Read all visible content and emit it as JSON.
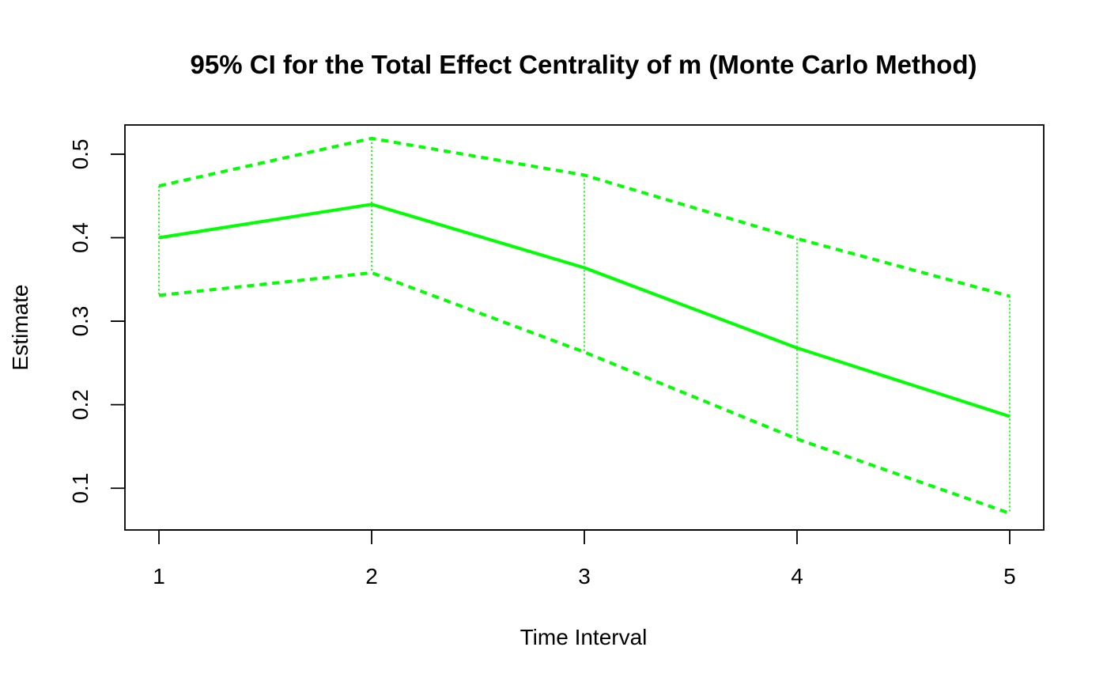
{
  "chart_data": {
    "type": "line",
    "title": "95% CI for the Total Effect Centrality of m (Monte Carlo Method)",
    "xlabel": "Time Interval",
    "ylabel": "Estimate",
    "x": [
      1,
      2,
      3,
      4,
      5
    ],
    "x_ticks": [
      "1",
      "2",
      "3",
      "4",
      "5"
    ],
    "y_ticks": [
      "0.1",
      "0.2",
      "0.3",
      "0.4",
      "0.5"
    ],
    "ylim": [
      0.05,
      0.535
    ],
    "xlim": [
      0.84,
      5.16
    ],
    "grid": false,
    "legend": "none",
    "color": "#00ff00",
    "series": [
      {
        "role": "estimate",
        "style": "solid",
        "values": [
          0.4,
          0.44,
          0.364,
          0.268,
          0.186
        ]
      },
      {
        "role": "upper",
        "style": "dashed",
        "values": [
          0.462,
          0.519,
          0.475,
          0.399,
          0.33
        ]
      },
      {
        "role": "lower",
        "style": "dashed",
        "values": [
          0.331,
          0.358,
          0.263,
          0.159,
          0.07
        ]
      }
    ]
  }
}
